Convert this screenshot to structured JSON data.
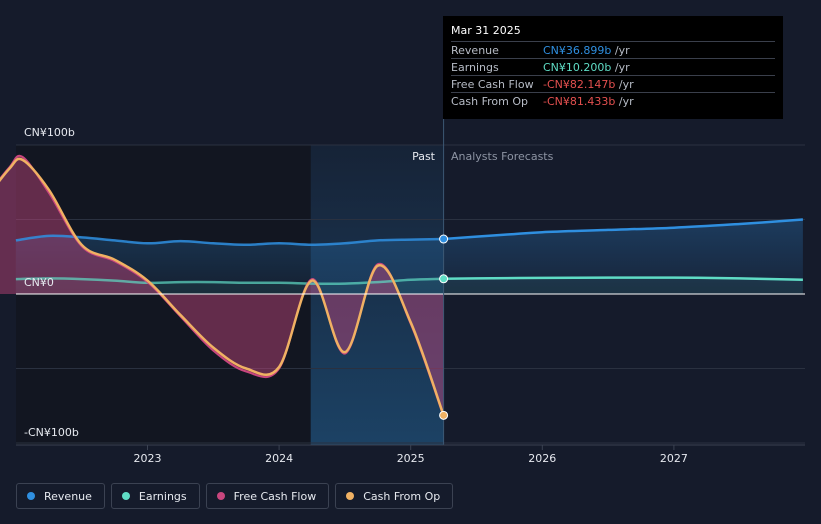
{
  "chart_data": {
    "type": "line",
    "title": "",
    "xlabel": "",
    "ylabel": "",
    "ylim": [
      -100,
      100
    ],
    "y_axis_labels": [
      "CN¥100b",
      "CN¥0",
      "-CN¥100b"
    ],
    "x_ticks": [
      "2023",
      "2024",
      "2025",
      "2026",
      "2027"
    ],
    "x_tick_values": [
      2023,
      2024,
      2025,
      2026,
      2027
    ],
    "xlim": [
      2021.78,
      2027.98
    ],
    "past_label": "Past",
    "forecast_label": "Analysts Forecasts",
    "past_end": 2025.25,
    "highlight_start": 2024.24,
    "series": [
      {
        "name": "Revenue",
        "color": "#2f8fe0",
        "x": [
          2022.0,
          2022.25,
          2022.5,
          2022.75,
          2023.0,
          2023.25,
          2023.5,
          2023.75,
          2024.0,
          2024.25,
          2024.5,
          2024.75,
          2025.0,
          2025.25,
          2025.5,
          2025.75,
          2026.0,
          2026.5,
          2027.0,
          2027.5,
          2027.98
        ],
        "values": [
          36,
          39,
          38,
          36,
          34,
          35.5,
          34,
          33,
          34,
          33,
          34,
          36,
          36.5,
          36.9,
          38.5,
          40,
          41.5,
          43,
          44.5,
          47,
          50
        ]
      },
      {
        "name": "Earnings",
        "color": "#5fdcc5",
        "x": [
          2022.0,
          2022.25,
          2022.5,
          2022.75,
          2023.0,
          2023.25,
          2023.5,
          2023.75,
          2024.0,
          2024.25,
          2024.5,
          2024.75,
          2025.0,
          2025.25,
          2025.5,
          2026.0,
          2026.5,
          2027.0,
          2027.5,
          2027.98
        ],
        "values": [
          10,
          10.5,
          10,
          9,
          7.5,
          8,
          8,
          7.5,
          7.5,
          7,
          7,
          8,
          9.5,
          10.2,
          10.5,
          10.8,
          11,
          11,
          10.5,
          9.5
        ]
      },
      {
        "name": "Free Cash Flow",
        "color": "#c8467e",
        "x": [
          2021.78,
          2021.95,
          2022.05,
          2022.25,
          2022.5,
          2022.75,
          2023.0,
          2023.25,
          2023.5,
          2023.75,
          2024.0,
          2024.25,
          2024.5,
          2024.75,
          2025.0,
          2025.25
        ],
        "values": [
          66,
          85,
          92,
          68,
          32,
          22,
          8,
          -15,
          -38,
          -52,
          -50,
          10,
          -40,
          20,
          -20,
          -82.147
        ]
      },
      {
        "name": "Cash From Op",
        "color": "#f0b163",
        "x": [
          2021.78,
          2021.95,
          2022.05,
          2022.25,
          2022.5,
          2022.75,
          2023.0,
          2023.25,
          2023.5,
          2023.75,
          2024.0,
          2024.25,
          2024.5,
          2024.75,
          2025.0,
          2025.25
        ],
        "values": [
          65,
          84,
          90,
          70,
          33,
          23,
          9,
          -14,
          -36,
          -50,
          -49,
          9,
          -39,
          19,
          -19,
          -81.433
        ]
      }
    ]
  },
  "tooltip": {
    "date": "Mar 31 2025",
    "rows": [
      {
        "label": "Revenue",
        "value": "CN¥36.899b",
        "unit": "/yr",
        "color": "#2f8fe0"
      },
      {
        "label": "Earnings",
        "value": "CN¥10.200b",
        "unit": "/yr",
        "color": "#5fdcc5"
      },
      {
        "label": "Free Cash Flow",
        "value": "-CN¥82.147b",
        "unit": "/yr",
        "color": "#e4504f"
      },
      {
        "label": "Cash From Op",
        "value": "-CN¥81.433b",
        "unit": "/yr",
        "color": "#e4504f"
      }
    ]
  },
  "legend": [
    {
      "label": "Revenue",
      "color": "#2f8fe0"
    },
    {
      "label": "Earnings",
      "color": "#5fdcc5"
    },
    {
      "label": "Free Cash Flow",
      "color": "#c8467e"
    },
    {
      "label": "Cash From Op",
      "color": "#f0b163"
    }
  ]
}
